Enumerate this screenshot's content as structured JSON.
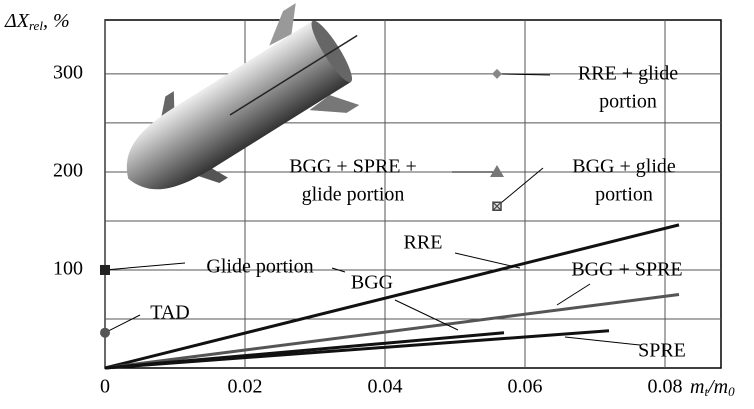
{
  "chart_data": {
    "type": "line",
    "xlim": [
      0,
      0.088
    ],
    "ylim": [
      0,
      355
    ],
    "xticks": [
      0,
      0.02,
      0.04,
      0.06,
      0.08
    ],
    "yticks": [
      100,
      200,
      300
    ],
    "ygrid": [
      50,
      150,
      250
    ],
    "x_label": [
      "m",
      "t",
      "/m",
      "0"
    ],
    "y_label": [
      "ΔX",
      "rel",
      ", %"
    ],
    "series": [
      {
        "name": "RRE",
        "color": "#111111",
        "x": [
          0,
          0.082
        ],
        "values": [
          0,
          146
        ]
      },
      {
        "name": "BGG + SPRE",
        "color": "#555555",
        "x": [
          0,
          0.082
        ],
        "values": [
          0,
          75
        ]
      },
      {
        "name": "BGG",
        "color": "#111111",
        "x": [
          0,
          0.057
        ],
        "values": [
          0,
          36
        ]
      },
      {
        "name": "SPRE",
        "color": "#111111",
        "x": [
          0,
          0.072
        ],
        "values": [
          0,
          38
        ]
      }
    ],
    "points": [
      {
        "lines": [
          "RRE + glide",
          "portion"
        ],
        "x": 0.056,
        "y": 300,
        "color": "#888888",
        "marker": "diamond"
      },
      {
        "lines": [
          "BGG + SPRE +",
          "glide portion"
        ],
        "x": 0.056,
        "y": 200,
        "color": "#777777",
        "marker": "triangle"
      },
      {
        "lines": [
          "BGG + glide",
          "portion"
        ],
        "x": 0.056,
        "y": 165,
        "color": "#444444",
        "marker": "xsquare"
      },
      {
        "lines": [
          "Glide portion"
        ],
        "x": 0,
        "y": 100,
        "color": "#222222",
        "marker": "square"
      },
      {
        "lines": [
          "TAD"
        ],
        "x": 0,
        "y": 36,
        "color": "#555555",
        "marker": "circle"
      }
    ]
  }
}
